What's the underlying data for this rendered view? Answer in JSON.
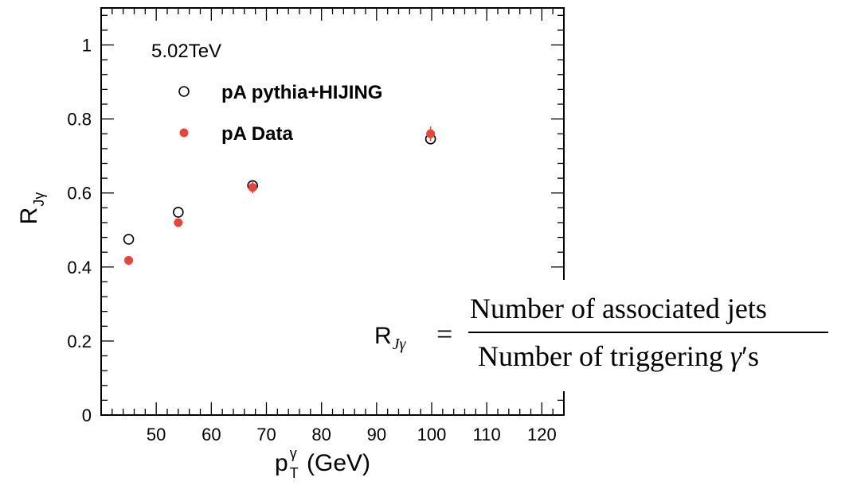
{
  "chart_data": {
    "type": "scatter",
    "annotation": "5.02TeV",
    "xlabel": {
      "main": "p",
      "sup": "γ",
      "sub": "T",
      "unit": " (GeV)"
    },
    "ylabel": {
      "main": "R",
      "sub": "Jγ"
    },
    "xlim": [
      40,
      124
    ],
    "ylim": [
      0,
      1.1
    ],
    "x_ticks": [
      50,
      60,
      70,
      80,
      90,
      100,
      110,
      120
    ],
    "y_ticks": [
      0,
      0.2,
      0.4,
      0.6,
      0.8,
      1
    ],
    "y_tick_labels": [
      "0",
      "0.2",
      "0.4",
      "0.6",
      "0.8",
      "1"
    ],
    "legend_position": "top-left",
    "series": [
      {
        "name": "pA pythia+HIJING",
        "marker": "open-circle",
        "color": "#000000",
        "x": [
          45,
          54,
          67.5,
          99.8
        ],
        "y": [
          0.475,
          0.548,
          0.62,
          0.746
        ]
      },
      {
        "name": "pA Data",
        "marker": "filled-circle",
        "color": "#e8443a",
        "x": [
          45,
          54,
          67.5,
          99.8
        ],
        "y": [
          0.418,
          0.52,
          0.615,
          0.76
        ],
        "yerr": [
          0.006,
          0.008,
          0.016,
          0.02
        ]
      }
    ],
    "formula": {
      "lhs_main": "R",
      "lhs_sub": "Jγ",
      "equals": "=",
      "numerator": "Number of associated jets",
      "denominator_text": "Number of triggering ",
      "denominator_symbol": "γ",
      "denominator_suffix": "′s"
    }
  }
}
